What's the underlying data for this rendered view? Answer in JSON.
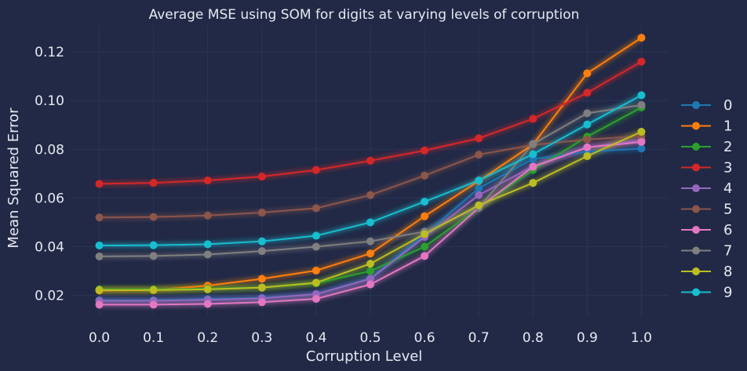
{
  "chart_data": {
    "type": "line",
    "title": "Average MSE using SOM for digits at varying levels of corruption",
    "xlabel": "Corruption Level",
    "ylabel": "Mean Squared Error",
    "xlim": [
      -0.05,
      1.05
    ],
    "ylim": [
      0.0115,
      0.131
    ],
    "x": [
      0.0,
      0.1,
      0.2,
      0.3,
      0.4,
      0.5,
      0.6,
      0.7,
      0.8,
      0.9,
      1.0
    ],
    "x_tick_labels": [
      "0.0",
      "0.1",
      "0.2",
      "0.3",
      "0.4",
      "0.5",
      "0.6",
      "0.7",
      "0.8",
      "0.9",
      "1.0"
    ],
    "y_ticks": [
      0.02,
      0.04,
      0.06,
      0.08,
      0.1,
      0.12
    ],
    "y_tick_labels": [
      "0.02",
      "0.04",
      "0.06",
      "0.08",
      "0.10",
      "0.12"
    ],
    "grid": true,
    "legend_position": "right",
    "background": "#212946",
    "grid_color": "#2a3459",
    "series": [
      {
        "name": "0",
        "color": "#1f77b4",
        "values": [
          0.018,
          0.018,
          0.0185,
          0.019,
          0.0205,
          0.027,
          0.045,
          0.064,
          0.076,
          0.079,
          0.0803
        ]
      },
      {
        "name": "1",
        "color": "#ff7f0e",
        "values": [
          0.022,
          0.0222,
          0.024,
          0.0268,
          0.0302,
          0.0372,
          0.0525,
          0.067,
          0.082,
          0.1112,
          0.1258
        ]
      },
      {
        "name": "2",
        "color": "#2ca02c",
        "values": [
          0.0225,
          0.0225,
          0.0228,
          0.0232,
          0.025,
          0.03,
          0.04,
          0.056,
          0.0715,
          0.0852,
          0.0972
        ]
      },
      {
        "name": "3",
        "color": "#d62728",
        "values": [
          0.0658,
          0.0662,
          0.0672,
          0.0688,
          0.0715,
          0.0753,
          0.0795,
          0.0845,
          0.0925,
          0.1032,
          0.116
        ]
      },
      {
        "name": "4",
        "color": "#9467bd",
        "values": [
          0.0178,
          0.0178,
          0.0182,
          0.0188,
          0.0205,
          0.0268,
          0.044,
          0.0612,
          0.073,
          0.0808,
          0.0838
        ]
      },
      {
        "name": "5",
        "color": "#8c564b",
        "values": [
          0.052,
          0.0522,
          0.0528,
          0.054,
          0.0558,
          0.0612,
          0.0692,
          0.0778,
          0.0818,
          0.084,
          0.0855
        ]
      },
      {
        "name": "6",
        "color": "#e377c2",
        "values": [
          0.0162,
          0.0162,
          0.0165,
          0.0172,
          0.0186,
          0.0245,
          0.0362,
          0.056,
          0.0728,
          0.0808,
          0.083
        ]
      },
      {
        "name": "7",
        "color": "#7f7f7f",
        "values": [
          0.036,
          0.0362,
          0.0368,
          0.0382,
          0.04,
          0.0422,
          0.0462,
          0.056,
          0.0822,
          0.0948,
          0.0982
        ]
      },
      {
        "name": "8",
        "color": "#bcbd22",
        "values": [
          0.0222,
          0.0222,
          0.0225,
          0.0232,
          0.0252,
          0.033,
          0.0452,
          0.057,
          0.0662,
          0.0772,
          0.0872
        ]
      },
      {
        "name": "9",
        "color": "#17becf",
        "values": [
          0.0405,
          0.0406,
          0.041,
          0.0422,
          0.0445,
          0.05,
          0.0585,
          0.0672,
          0.078,
          0.0902,
          0.1022
        ]
      }
    ]
  }
}
